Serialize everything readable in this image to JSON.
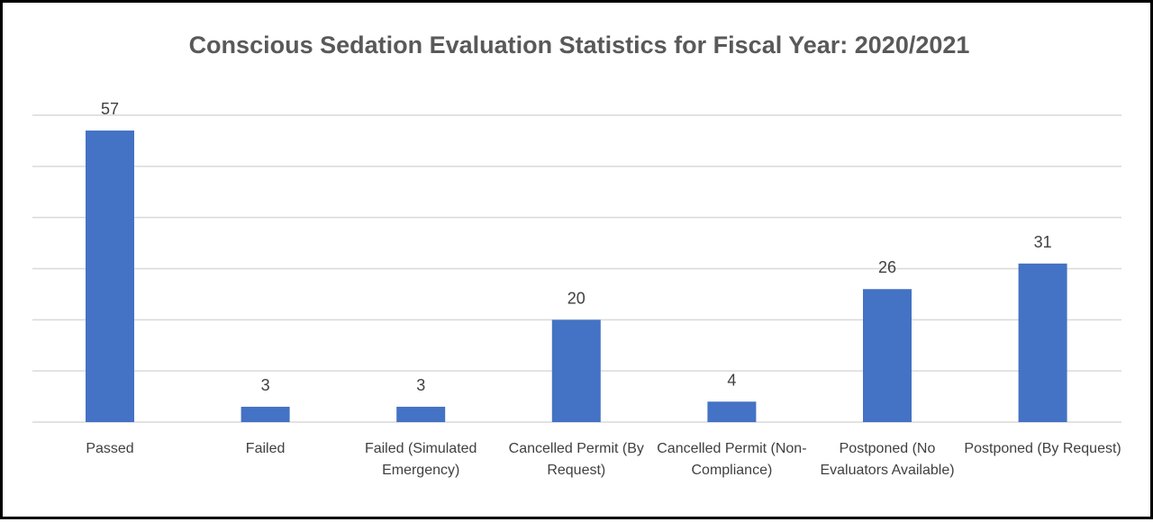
{
  "chart_data": {
    "type": "bar",
    "title": "Conscious Sedation Evaluation Statistics for Fiscal Year: 2020/2021",
    "categories": [
      "Passed",
      "Failed",
      "Failed (Simulated Emergency)",
      "Cancelled Permit (By Request)",
      "Cancelled Permit (Non-Compliance)",
      "Postponed (No Evaluators Available)",
      "Postponed (By Request)"
    ],
    "values": [
      57,
      3,
      3,
      20,
      4,
      26,
      31
    ],
    "color": "#4472c4",
    "ylim": [
      0,
      60
    ],
    "yticks": [
      0,
      10,
      20,
      30,
      40,
      50,
      60
    ],
    "grid": true
  }
}
